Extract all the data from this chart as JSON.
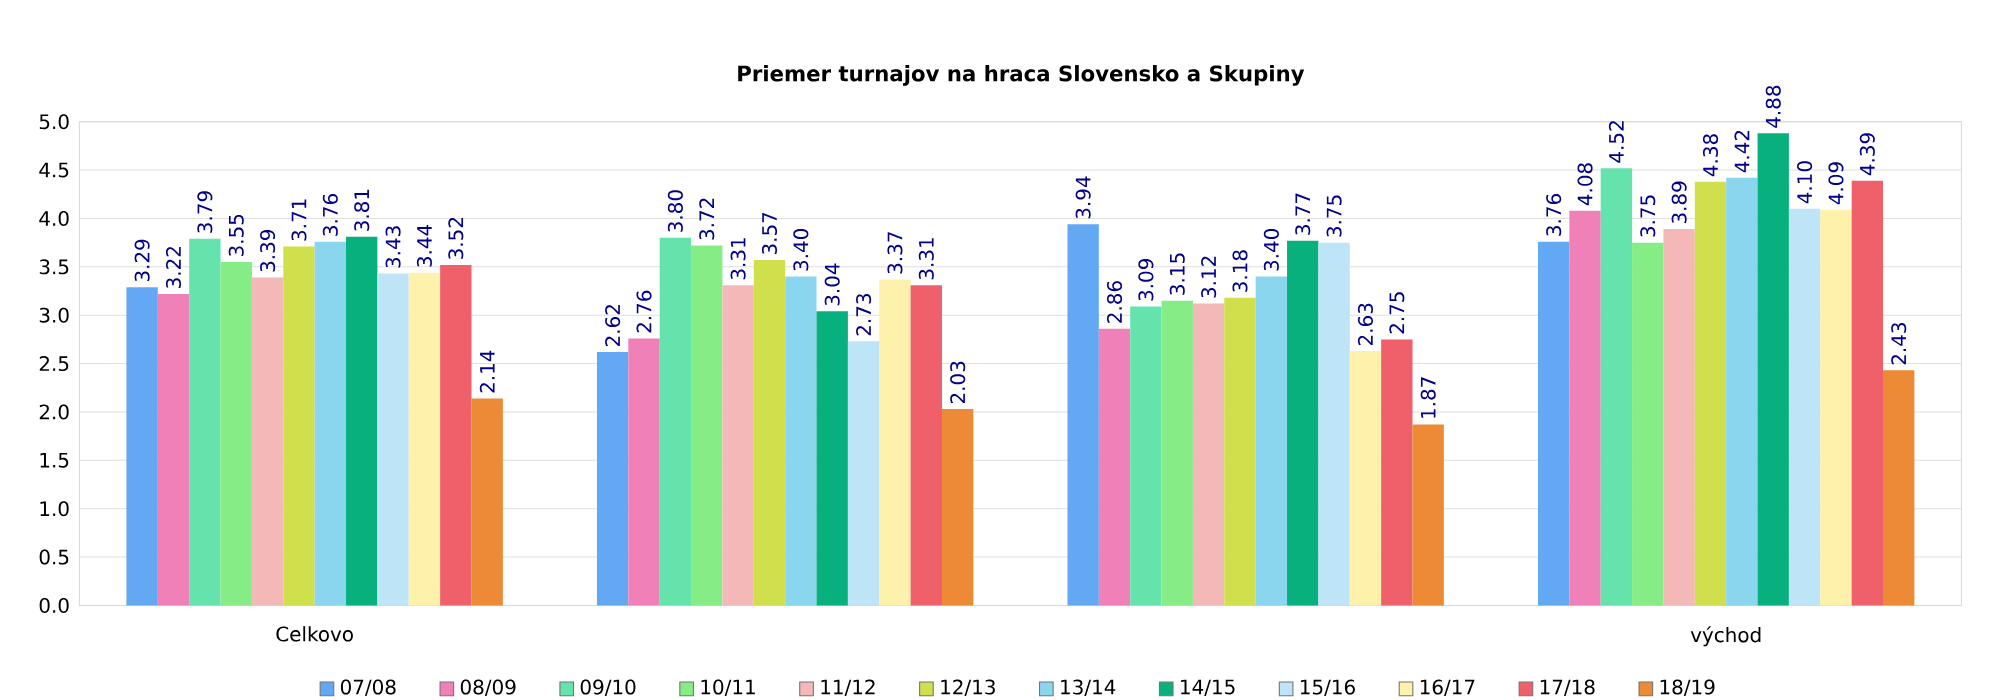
{
  "chart_data": {
    "type": "bar",
    "title": "Priemer turnajov na hraca Slovensko a Skupiny",
    "categories": [
      "Celkovo",
      null,
      null,
      "východ"
    ],
    "series": [
      {
        "name": "07/08",
        "color": "#63a8f2",
        "values": [
          3.29,
          2.62,
          3.94,
          3.76
        ],
        "value_labels": [
          "3.29",
          "2.62",
          "3.94",
          "3.76"
        ]
      },
      {
        "name": "08/09",
        "color": "#f080b8",
        "values": [
          3.22,
          2.76,
          2.86,
          4.08
        ],
        "value_labels": [
          "3.22",
          "2.76",
          "2.86",
          "4.08"
        ]
      },
      {
        "name": "09/10",
        "color": "#64e3ac",
        "values": [
          3.79,
          3.8,
          3.09,
          4.52
        ],
        "value_labels": [
          "3.79",
          "3.80",
          "3.09",
          "4.52"
        ]
      },
      {
        "name": "10/11",
        "color": "#86ec86",
        "values": [
          3.55,
          3.72,
          3.15,
          3.75
        ],
        "value_labels": [
          "3.55",
          "3.72",
          "3.15",
          "3.75"
        ]
      },
      {
        "name": "11/12",
        "color": "#f5b8b8",
        "values": [
          3.39,
          3.31,
          3.12,
          3.89
        ],
        "value_labels": [
          "3.39",
          "3.31",
          "3.12",
          "3.89"
        ]
      },
      {
        "name": "12/13",
        "color": "#d0df4c",
        "values": [
          3.71,
          3.57,
          3.18,
          4.38
        ],
        "value_labels": [
          "3.71",
          "3.57",
          "3.18",
          "4.38"
        ]
      },
      {
        "name": "13/14",
        "color": "#8ad6ef",
        "values": [
          3.76,
          3.4,
          3.4,
          4.42
        ],
        "value_labels": [
          "3.76",
          "3.40",
          "3.40",
          "4.42"
        ]
      },
      {
        "name": "14/15",
        "color": "#07b07c",
        "values": [
          3.81,
          3.04,
          3.77,
          4.88
        ],
        "value_labels": [
          "3.81",
          "3.04",
          "3.77",
          "4.88"
        ]
      },
      {
        "name": "15/16",
        "color": "#bee4f8",
        "values": [
          3.43,
          2.73,
          3.75,
          4.1
        ],
        "value_labels": [
          "3.43",
          "2.73",
          "3.75",
          "4.10"
        ]
      },
      {
        "name": "16/17",
        "color": "#fdf1ab",
        "values": [
          3.44,
          3.37,
          2.63,
          4.09
        ],
        "value_labels": [
          "3.44",
          "3.37",
          "2.63",
          "4.09"
        ]
      },
      {
        "name": "17/18",
        "color": "#f0606a",
        "values": [
          3.52,
          3.31,
          2.75,
          4.39
        ],
        "value_labels": [
          "3.52",
          "3.31",
          "2.75",
          "4.39"
        ]
      },
      {
        "name": "18/19",
        "color": "#ec8a36",
        "values": [
          2.14,
          2.03,
          1.87,
          2.43
        ],
        "value_labels": [
          "2.14",
          "2.03",
          "1.87",
          "2.43"
        ]
      }
    ],
    "ylim": [
      0,
      5
    ],
    "yticks": [
      {
        "value": 0,
        "label": "0.0"
      },
      {
        "value": 0.5,
        "label": "0.5"
      },
      {
        "value": 1,
        "label": "1.0"
      },
      {
        "value": 1.5,
        "label": "1.5"
      },
      {
        "value": 2,
        "label": "2.0"
      },
      {
        "value": 2.5,
        "label": "2.5"
      },
      {
        "value": 3,
        "label": "3.0"
      },
      {
        "value": 3.5,
        "label": "3.5"
      },
      {
        "value": 4,
        "label": "4.0"
      },
      {
        "value": 4.5,
        "label": "4.5"
      },
      {
        "value": 5,
        "label": "5.0"
      }
    ],
    "grid": "y",
    "legend": "bottom"
  }
}
